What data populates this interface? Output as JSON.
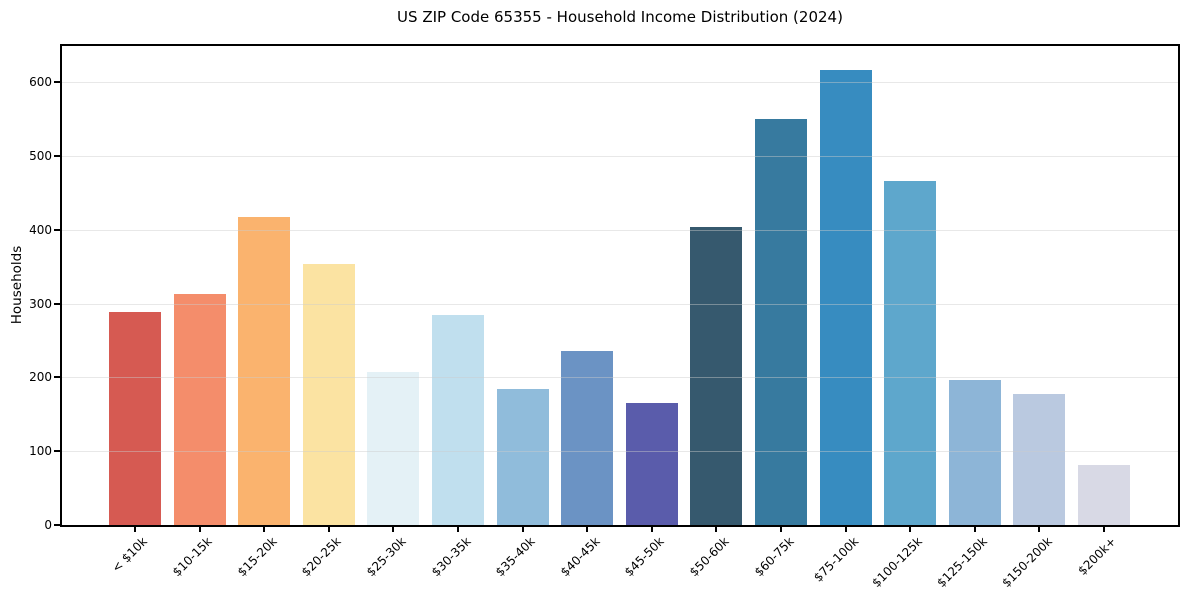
{
  "chart_data": {
    "type": "bar",
    "title": "US ZIP Code 65355 - Household Income Distribution (2024)",
    "xlabel": "",
    "ylabel": "Households",
    "categories": [
      "< $10k",
      "$10-15k",
      "$15-20k",
      "$20-25k",
      "$25-30k",
      "$30-35k",
      "$35-40k",
      "$40-45k",
      "$45-50k",
      "$50-60k",
      "$60-75k",
      "$75-100k",
      "$100-125k",
      "$125-150k",
      "$150-200k",
      "$200k+"
    ],
    "values": [
      288,
      313,
      417,
      354,
      208,
      284,
      185,
      236,
      166,
      404,
      550,
      616,
      466,
      197,
      177,
      82
    ],
    "bar_colors": [
      "#d65a52",
      "#f48d6b",
      "#fab36e",
      "#fbe3a2",
      "#e4f1f6",
      "#c0dfee",
      "#90bcdb",
      "#6b93c4",
      "#5a5cab",
      "#36596e",
      "#377a9f",
      "#378cc0",
      "#5ea7cc",
      "#8db5d7",
      "#bac9e0",
      "#d8d9e5"
    ],
    "yticks": [
      0,
      100,
      200,
      300,
      400,
      500,
      600
    ],
    "ylim": [
      0,
      649
    ],
    "grid": "horizontal",
    "legend": "none",
    "axis_color": "#000000",
    "gridline_color": "#ebebeb",
    "background_color": "#ffffff"
  }
}
